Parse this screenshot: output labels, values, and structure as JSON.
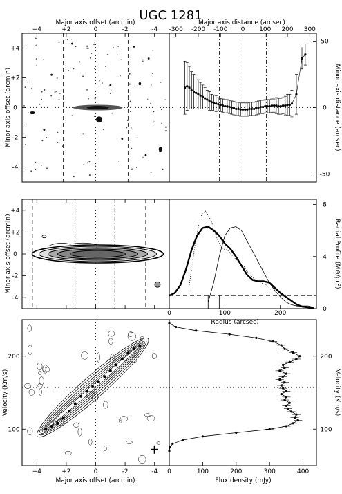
{
  "title": "UGC 1281",
  "chart_data": [
    {
      "panel": "optical-image",
      "type": "image",
      "top_axis_label": "Major axis offset (arcmin)",
      "left_axis_label": "Minor axis offset (arcmin)",
      "xlim": [
        5,
        -5
      ],
      "ylim": [
        -5,
        5
      ],
      "x_ticks": [
        "+4",
        "+2",
        "0",
        "-2",
        "-4"
      ],
      "y_ticks": [
        "+4",
        "+2",
        "0",
        "-2",
        "-4"
      ],
      "guide_lines_x": [
        2.2,
        -2.2
      ],
      "center_lines": true
    },
    {
      "panel": "minor-axis-offset",
      "type": "scatter",
      "top_axis_label": "Major axis distance (arcsec)",
      "right_axis_label": "Minor axis distance (arcsec)",
      "xlim": [
        -330,
        330
      ],
      "ylim": [
        -56,
        56
      ],
      "x_ticks": [
        "-300",
        "-200",
        "-100",
        "0",
        "100",
        "200",
        "300"
      ],
      "y_ticks": [
        "50",
        "0",
        "-50"
      ],
      "dashdot_lines_x": [
        -105,
        105
      ],
      "x": [
        -260,
        -250,
        -240,
        -230,
        -220,
        -210,
        -200,
        -190,
        -180,
        -170,
        -160,
        -150,
        -140,
        -130,
        -120,
        -110,
        -100,
        -90,
        -80,
        -70,
        -60,
        -50,
        -40,
        -30,
        -20,
        -10,
        0,
        10,
        20,
        30,
        40,
        50,
        60,
        70,
        80,
        90,
        100,
        110,
        120,
        130,
        140,
        150,
        160,
        170,
        180,
        190,
        200,
        210,
        220,
        240,
        265,
        280
      ],
      "y": [
        15,
        16,
        15,
        13,
        12,
        11,
        10,
        9,
        8,
        7,
        6,
        5,
        4,
        3.5,
        3,
        2.5,
        2,
        1.5,
        1,
        1,
        0.5,
        0,
        -0.5,
        -1,
        -1,
        -1.5,
        -1.5,
        -1.5,
        -1.5,
        -1,
        -1,
        -1,
        -0.5,
        0,
        0.5,
        0.5,
        1,
        1,
        1,
        1.5,
        1.5,
        1.5,
        1,
        1,
        1.5,
        1.5,
        2,
        2,
        3,
        10,
        37,
        40
      ],
      "yerr": [
        20,
        18,
        16,
        14,
        13,
        12,
        11,
        10,
        9,
        8,
        7,
        7,
        6,
        6,
        6,
        5,
        5,
        5,
        5,
        5,
        5,
        5,
        5,
        5,
        5,
        5,
        5,
        5,
        5,
        5,
        5,
        5,
        5,
        5,
        5,
        5,
        5,
        5,
        5,
        5,
        5,
        6,
        6,
        6,
        6,
        7,
        8,
        8,
        10,
        15,
        8,
        8
      ]
    },
    {
      "panel": "total-hi-map",
      "type": "contour",
      "left_axis_label": "Minor axis offset (arcmin)",
      "xlim": [
        5,
        -5
      ],
      "ylim": [
        -5,
        5
      ],
      "y_ticks": [
        "+4",
        "+2",
        "0",
        "-2",
        "-4"
      ],
      "dashed_lines_x": [
        4.3,
        -3.4
      ],
      "dashdot_lines_x": [
        1.4,
        -1.3
      ]
    },
    {
      "panel": "radial-profile",
      "type": "line",
      "xlabel": "Radius (arcsec)",
      "right_axis_label": "Radial Profile (M⊙/pc²)",
      "xlim": [
        0,
        265
      ],
      "ylim": [
        0,
        8.4
      ],
      "x_ticks": [
        "0",
        "100",
        "200"
      ],
      "y_ticks": [
        "0",
        "4",
        "8"
      ],
      "series": [
        {
          "x": [
            0,
            10,
            20,
            30,
            40,
            50,
            60,
            70,
            80,
            90,
            100,
            110,
            120,
            130,
            140,
            150,
            160,
            170,
            180,
            190,
            200,
            210,
            220,
            230,
            240,
            250,
            260
          ],
          "y": [
            1.0,
            1.2,
            1.8,
            3.0,
            4.5,
            5.6,
            6.2,
            6.3,
            6.0,
            5.6,
            5.0,
            4.6,
            4.0,
            3.3,
            2.6,
            2.2,
            2.1,
            2.1,
            2.0,
            1.6,
            1.2,
            0.9,
            0.6,
            0.3,
            0.15,
            0.1,
            0.05
          ]
        },
        {
          "x": [
            70,
            80,
            90,
            100,
            110,
            120,
            130,
            140,
            150,
            160,
            170,
            180,
            190,
            200,
            210,
            220,
            230,
            240,
            250,
            260
          ],
          "y": [
            0.5,
            2.0,
            4.0,
            5.6,
            6.2,
            6.3,
            6.0,
            5.2,
            4.4,
            3.6,
            2.8,
            2.0,
            1.4,
            0.9,
            0.5,
            0.3,
            0.2,
            0.2,
            0.2,
            0.1
          ]
        },
        {
          "x": [
            35,
            45,
            55,
            65,
            75,
            85,
            95,
            105,
            115,
            125,
            135,
            145,
            155,
            165,
            175,
            185
          ],
          "y": [
            1.5,
            4.5,
            7.0,
            7.5,
            6.8,
            5.5,
            4.6,
            4.5,
            4.0,
            3.6,
            3.2,
            2.6,
            2.2,
            2.0,
            1.8,
            1.4
          ]
        }
      ],
      "dashed_level_y": 1.0,
      "marker_x": [
        70,
        90
      ]
    },
    {
      "panel": "position-velocity",
      "type": "contour",
      "xlabel": "Major axis offset (arcmin)",
      "ylabel": "Velocity (Km/s)",
      "xlim": [
        5,
        -5
      ],
      "ylim": [
        50,
        250
      ],
      "x_ticks": [
        "+4",
        "+2",
        "0",
        "-2",
        "-4"
      ],
      "y_ticks": [
        "100",
        "200"
      ],
      "systemic_velocity": 157,
      "rotation_curve_x": [
        3.4,
        3.0,
        2.6,
        2.2,
        1.8,
        1.4,
        1.0,
        0.6,
        0.2,
        -0.2,
        -0.6,
        -1.0,
        -1.4,
        -1.8,
        -2.2,
        -2.6,
        -3.0
      ],
      "rotation_curve_v": [
        100,
        104,
        108,
        115,
        125,
        135,
        145,
        152,
        158,
        165,
        172,
        180,
        188,
        196,
        204,
        210,
        214
      ]
    },
    {
      "panel": "global-profile",
      "type": "line",
      "xlabel": "Flux density (mJy)",
      "right_axis_label": "Velocity (Km/s)",
      "xlim": [
        0,
        440
      ],
      "ylim": [
        50,
        250
      ],
      "x_ticks": [
        "0",
        "100",
        "200",
        "300",
        "400"
      ],
      "y_ticks": [
        "100",
        "200"
      ],
      "systemic_velocity": 157,
      "velocity": [
        245,
        240,
        235,
        230,
        225,
        220,
        215,
        210,
        205,
        200,
        196,
        192,
        188,
        184,
        180,
        176,
        172,
        168,
        164,
        160,
        156,
        152,
        148,
        144,
        140,
        136,
        132,
        128,
        124,
        120,
        116,
        112,
        108,
        104,
        100,
        95,
        90,
        85,
        80,
        75,
        70
      ],
      "flux": [
        0,
        20,
        80,
        180,
        260,
        310,
        335,
        345,
        370,
        390,
        380,
        360,
        340,
        345,
        330,
        350,
        340,
        330,
        345,
        335,
        340,
        350,
        335,
        350,
        345,
        360,
        350,
        355,
        365,
        380,
        375,
        385,
        370,
        350,
        300,
        200,
        100,
        40,
        10,
        2,
        0
      ]
    }
  ]
}
